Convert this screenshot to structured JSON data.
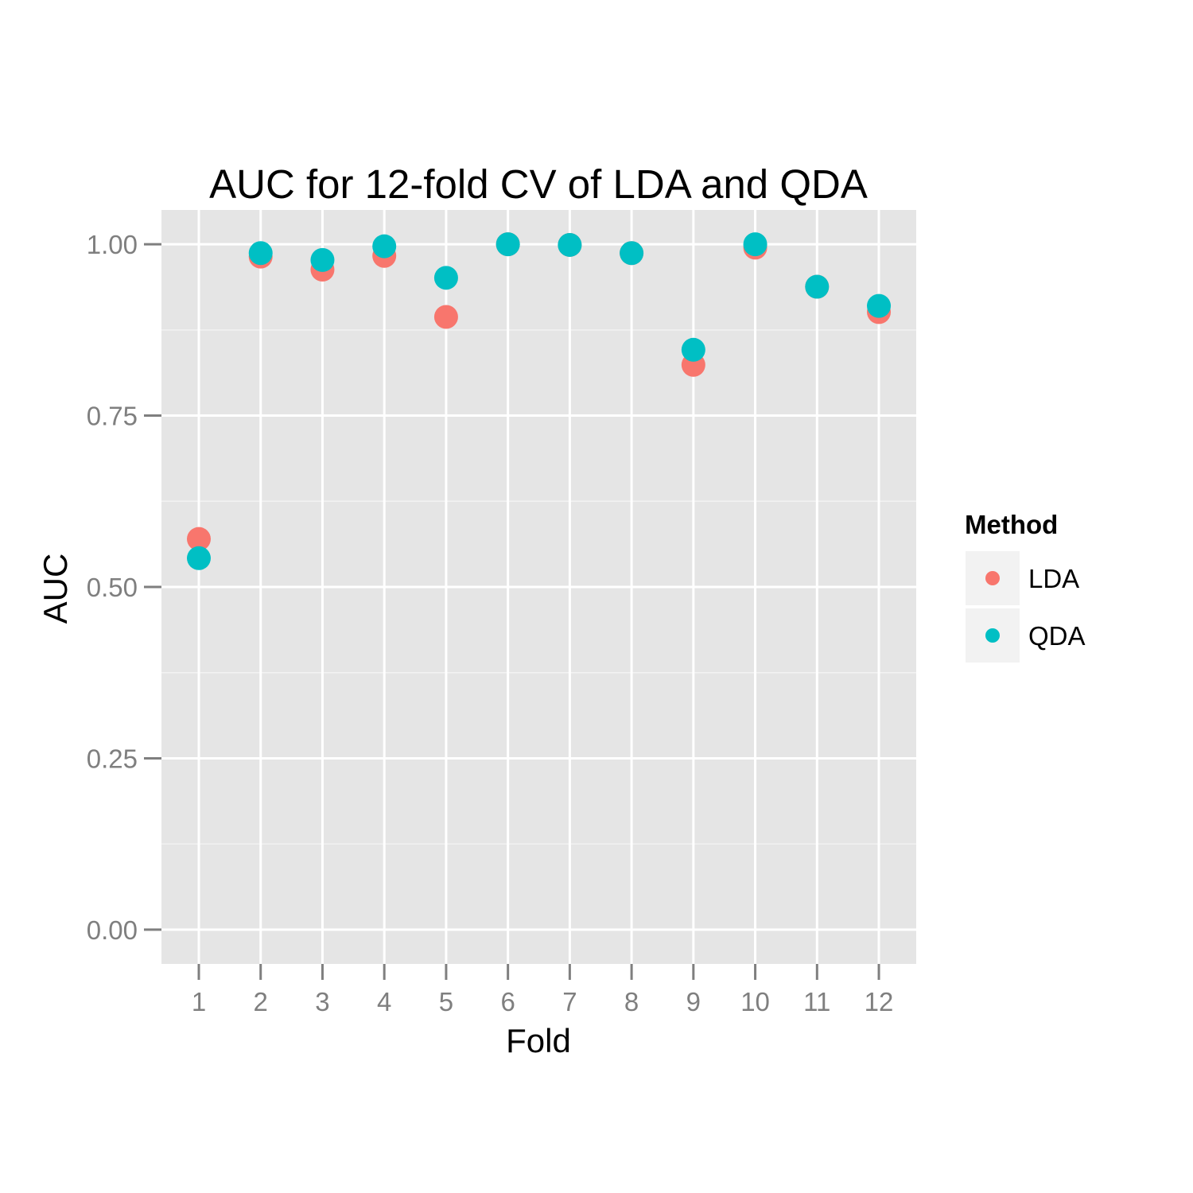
{
  "chart_data": {
    "type": "scatter",
    "title": "AUC for 12-fold CV of LDA and QDA",
    "xlabel": "Fold",
    "ylabel": "AUC",
    "categories": [
      "1",
      "2",
      "3",
      "4",
      "5",
      "6",
      "7",
      "8",
      "9",
      "10",
      "11",
      "12"
    ],
    "ylim": [
      -0.05,
      1.05
    ],
    "yticks": [
      "0.00",
      "0.25",
      "0.50",
      "0.75",
      "1.00"
    ],
    "grid": true,
    "legend": {
      "title": "Method",
      "position": "right"
    },
    "series": [
      {
        "name": "LDA",
        "color": "#F8766D",
        "values": [
          0.57,
          0.982,
          0.963,
          0.983,
          0.894,
          1.0,
          0.999,
          0.987,
          0.824,
          0.995,
          0.938,
          0.901
        ]
      },
      {
        "name": "QDA",
        "color": "#00BFC4",
        "values": [
          0.542,
          0.987,
          0.977,
          0.997,
          0.951,
          1.0,
          0.999,
          0.987,
          0.846,
          1.0,
          0.938,
          0.91
        ]
      }
    ]
  }
}
